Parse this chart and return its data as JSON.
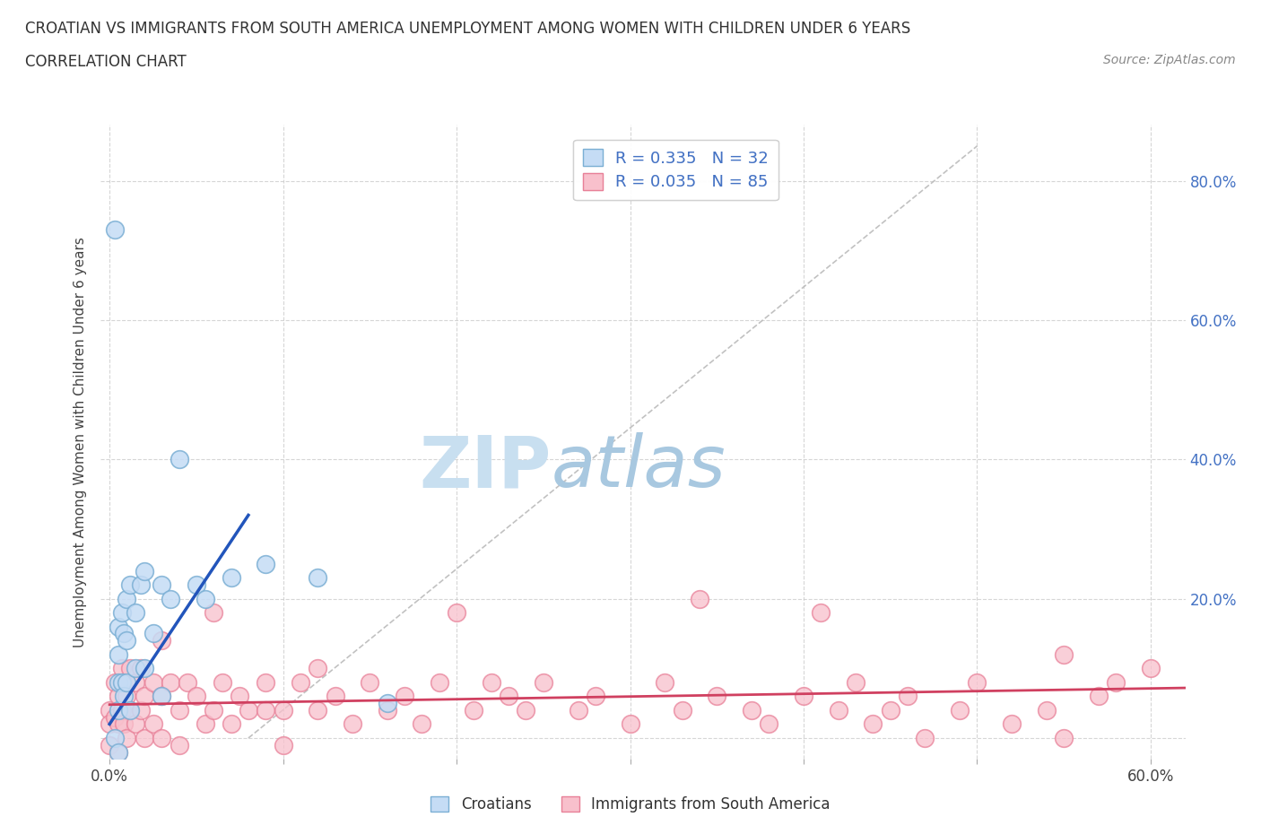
{
  "title_line1": "CROATIAN VS IMMIGRANTS FROM SOUTH AMERICA UNEMPLOYMENT AMONG WOMEN WITH CHILDREN UNDER 6 YEARS",
  "title_line2": "CORRELATION CHART",
  "source_text": "Source: ZipAtlas.com",
  "ylabel": "Unemployment Among Women with Children Under 6 years",
  "xlim": [
    -0.005,
    0.62
  ],
  "ylim": [
    -0.03,
    0.88
  ],
  "xtick_positions": [
    0.0,
    0.1,
    0.2,
    0.3,
    0.4,
    0.5,
    0.6
  ],
  "xticklabels": [
    "0.0%",
    "",
    "",
    "",
    "",
    "",
    "60.0%"
  ],
  "ytick_positions": [
    0.0,
    0.2,
    0.4,
    0.6,
    0.8
  ],
  "yticklabels_right": [
    "",
    "20.0%",
    "40.0%",
    "60.0%",
    "80.0%"
  ],
  "croatian_R": 0.335,
  "croatian_N": 32,
  "southam_R": 0.035,
  "southam_N": 85,
  "croatian_face_color": "#c5dcf5",
  "croatian_edge_color": "#7bafd4",
  "southam_face_color": "#f8c0cc",
  "southam_edge_color": "#e88098",
  "trend_croatian_color": "#2255bb",
  "trend_southam_color": "#d04060",
  "diag_color": "#bbbbbb",
  "watermark_zip_color": "#ccddef",
  "watermark_atlas_color": "#aaccee",
  "background_color": "#ffffff",
  "grid_color": "#cccccc",
  "cr_x": [
    0.003,
    0.003,
    0.005,
    0.005,
    0.005,
    0.005,
    0.005,
    0.007,
    0.007,
    0.008,
    0.008,
    0.01,
    0.01,
    0.01,
    0.012,
    0.012,
    0.015,
    0.015,
    0.018,
    0.02,
    0.02,
    0.025,
    0.03,
    0.03,
    0.035,
    0.04,
    0.05,
    0.055,
    0.07,
    0.09,
    0.12,
    0.16
  ],
  "cr_y": [
    0.73,
    0.0,
    0.16,
    0.12,
    0.08,
    0.04,
    -0.02,
    0.18,
    0.08,
    0.15,
    0.06,
    0.2,
    0.14,
    0.08,
    0.22,
    0.04,
    0.18,
    0.1,
    0.22,
    0.24,
    0.1,
    0.15,
    0.22,
    0.06,
    0.2,
    0.4,
    0.22,
    0.2,
    0.23,
    0.25,
    0.23,
    0.05
  ],
  "sa_x": [
    0.0,
    0.0,
    0.0,
    0.003,
    0.003,
    0.005,
    0.005,
    0.005,
    0.007,
    0.007,
    0.008,
    0.008,
    0.01,
    0.01,
    0.012,
    0.012,
    0.015,
    0.015,
    0.018,
    0.018,
    0.02,
    0.02,
    0.025,
    0.025,
    0.03,
    0.03,
    0.035,
    0.04,
    0.04,
    0.045,
    0.05,
    0.055,
    0.06,
    0.065,
    0.07,
    0.075,
    0.08,
    0.09,
    0.1,
    0.1,
    0.11,
    0.12,
    0.13,
    0.14,
    0.15,
    0.16,
    0.17,
    0.18,
    0.19,
    0.2,
    0.21,
    0.22,
    0.23,
    0.24,
    0.25,
    0.27,
    0.28,
    0.3,
    0.32,
    0.33,
    0.34,
    0.35,
    0.37,
    0.38,
    0.4,
    0.41,
    0.42,
    0.43,
    0.44,
    0.45,
    0.46,
    0.47,
    0.49,
    0.5,
    0.52,
    0.54,
    0.55,
    0.57,
    0.58,
    0.6,
    0.03,
    0.06,
    0.09,
    0.12,
    0.55
  ],
  "sa_y": [
    0.04,
    0.02,
    -0.01,
    0.08,
    0.03,
    0.06,
    0.02,
    -0.02,
    0.1,
    0.04,
    0.08,
    0.02,
    0.06,
    0.0,
    0.1,
    0.04,
    0.08,
    0.02,
    0.1,
    0.04,
    0.06,
    0.0,
    0.08,
    0.02,
    0.06,
    0.0,
    0.08,
    0.04,
    -0.01,
    0.08,
    0.06,
    0.02,
    0.04,
    0.08,
    0.02,
    0.06,
    0.04,
    0.08,
    0.04,
    -0.01,
    0.08,
    0.04,
    0.06,
    0.02,
    0.08,
    0.04,
    0.06,
    0.02,
    0.08,
    0.18,
    0.04,
    0.08,
    0.06,
    0.04,
    0.08,
    0.04,
    0.06,
    0.02,
    0.08,
    0.04,
    0.2,
    0.06,
    0.04,
    0.02,
    0.06,
    0.18,
    0.04,
    0.08,
    0.02,
    0.04,
    0.06,
    0.0,
    0.04,
    0.08,
    0.02,
    0.04,
    0.0,
    0.06,
    0.08,
    0.1,
    0.14,
    0.18,
    0.04,
    0.1,
    0.12
  ],
  "legend_label1": "Croatians",
  "legend_label2": "Immigrants from South America"
}
